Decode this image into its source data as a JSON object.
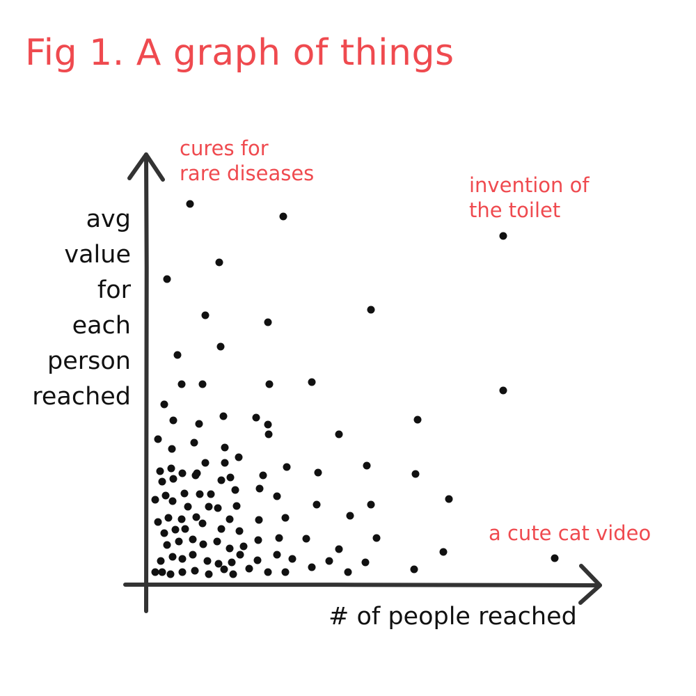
{
  "title": "Fig 1. A graph of things",
  "chart_data": {
    "type": "scatter",
    "title": "Fig 1. A graph of things",
    "xlabel": "# of people reached",
    "ylabel_lines": [
      "avg",
      "value",
      "for",
      "each",
      "person",
      "reached"
    ],
    "grid": false,
    "legend": "none",
    "axis_ticks": false,
    "points": [
      [
        223,
        822
      ],
      [
        233,
        822
      ],
      [
        245,
        825
      ],
      [
        262,
        822
      ],
      [
        280,
        820
      ],
      [
        300,
        825
      ],
      [
        322,
        818
      ],
      [
        335,
        825
      ],
      [
        358,
        817
      ],
      [
        385,
        822
      ],
      [
        410,
        822
      ],
      [
        448,
        815
      ],
      [
        473,
        806
      ],
      [
        500,
        822
      ],
      [
        525,
        808
      ],
      [
        595,
        818
      ],
      [
        637,
        793
      ],
      [
        797,
        802
      ],
      [
        231,
        806
      ],
      [
        248,
        800
      ],
      [
        262,
        803
      ],
      [
        277,
        797
      ],
      [
        298,
        806
      ],
      [
        314,
        810
      ],
      [
        333,
        808
      ],
      [
        345,
        797
      ],
      [
        370,
        805
      ],
      [
        398,
        797
      ],
      [
        420,
        803
      ],
      [
        487,
        789
      ],
      [
        240,
        783
      ],
      [
        257,
        778
      ],
      [
        277,
        775
      ],
      [
        292,
        782
      ],
      [
        312,
        778
      ],
      [
        330,
        788
      ],
      [
        350,
        785
      ],
      [
        371,
        776
      ],
      [
        401,
        773
      ],
      [
        440,
        774
      ],
      [
        541,
        773
      ],
      [
        236,
        766
      ],
      [
        252,
        761
      ],
      [
        266,
        760
      ],
      [
        291,
        752
      ],
      [
        318,
        760
      ],
      [
        344,
        763
      ],
      [
        372,
        747
      ],
      [
        410,
        744
      ],
      [
        503,
        741
      ],
      [
        227,
        750
      ],
      [
        242,
        744
      ],
      [
        261,
        746
      ],
      [
        282,
        743
      ],
      [
        330,
        746
      ],
      [
        455,
        725
      ],
      [
        533,
        725
      ],
      [
        223,
        718
      ],
      [
        238,
        712
      ],
      [
        248,
        720
      ],
      [
        265,
        709
      ],
      [
        270,
        728
      ],
      [
        287,
        710
      ],
      [
        303,
        710
      ],
      [
        313,
        730
      ],
      [
        340,
        727
      ],
      [
        373,
        702
      ],
      [
        398,
        713
      ],
      [
        645,
        717
      ],
      [
        233,
        692
      ],
      [
        249,
        688
      ],
      [
        262,
        680
      ],
      [
        281,
        683
      ],
      [
        300,
        728
      ],
      [
        318,
        690
      ],
      [
        338,
        704
      ],
      [
        378,
        683
      ],
      [
        331,
        686
      ],
      [
        230,
        677
      ],
      [
        246,
        673
      ],
      [
        283,
        680
      ],
      [
        295,
        665
      ],
      [
        323,
        665
      ],
      [
        343,
        657
      ],
      [
        412,
        671
      ],
      [
        457,
        679
      ],
      [
        527,
        669
      ],
      [
        597,
        681
      ],
      [
        247,
        645
      ],
      [
        279,
        636
      ],
      [
        323,
        643
      ],
      [
        386,
        624
      ],
      [
        487,
        624
      ],
      [
        227,
        631
      ],
      [
        249,
        604
      ],
      [
        286,
        609
      ],
      [
        321,
        598
      ],
      [
        368,
        600
      ],
      [
        385,
        610
      ],
      [
        600,
        603
      ],
      [
        236,
        581
      ],
      [
        261,
        552
      ],
      [
        291,
        552
      ],
      [
        387,
        552
      ],
      [
        448,
        549
      ],
      [
        723,
        561
      ],
      [
        255,
        510
      ],
      [
        317,
        498
      ],
      [
        295,
        453
      ],
      [
        385,
        463
      ],
      [
        533,
        445
      ],
      [
        240,
        401
      ],
      [
        315,
        377
      ],
      [
        273,
        293
      ],
      [
        407,
        311
      ],
      [
        723,
        339
      ]
    ]
  },
  "annotations": {
    "cures": [
      "cures for",
      "rare diseases"
    ],
    "toilet": [
      "invention of",
      "the toilet"
    ],
    "cat": [
      "a cute cat video"
    ]
  },
  "colors": {
    "accent": "#ef4a4f",
    "ink": "#111111",
    "axis": "#333333"
  }
}
